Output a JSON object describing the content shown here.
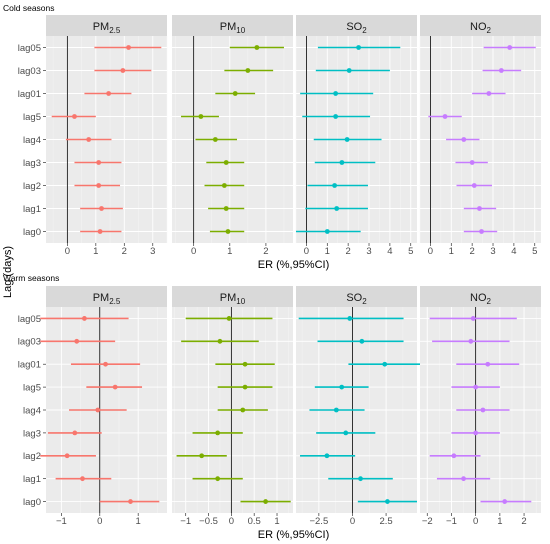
{
  "axis_labels": {
    "x": "ER (%,95%CI)",
    "y": "Lag (days)"
  },
  "sections": [
    {
      "title": "Cold seasons"
    },
    {
      "title": "Warm seasons"
    }
  ],
  "panel_labels": [
    {
      "base": "PM",
      "sub": "2.5"
    },
    {
      "base": "PM",
      "sub": "10"
    },
    {
      "base": "SO",
      "sub": "2"
    },
    {
      "base": "NO",
      "sub": "2"
    }
  ],
  "colors": {
    "PM2.5": "#f8766d",
    "PM10": "#7cae00",
    "SO2": "#00bfc4",
    "NO2": "#c77cff"
  },
  "chart_data": [
    {
      "type": "scatter",
      "subtype": "forest-plot",
      "title": "Cold seasons",
      "xlabel": "ER (%,95%CI)",
      "ylabel": "Lag (days)",
      "categories": [
        "lag05",
        "lag03",
        "lag01",
        "lag5",
        "lag4",
        "lag3",
        "lag2",
        "lag1",
        "lag0"
      ],
      "grid": true,
      "panels": [
        {
          "pollutant": "PM2.5",
          "xlim": [
            -0.75,
            3.5
          ],
          "xticks": [
            0,
            1,
            2,
            3
          ],
          "estimate": [
            2.15,
            1.95,
            1.45,
            0.25,
            0.75,
            1.1,
            1.1,
            1.2,
            1.15
          ],
          "lower": [
            0.95,
            0.95,
            0.6,
            -0.55,
            -0.05,
            0.25,
            0.25,
            0.45,
            0.45
          ],
          "upper": [
            3.3,
            2.95,
            2.25,
            1.0,
            1.55,
            1.9,
            1.85,
            1.95,
            1.9
          ]
        },
        {
          "pollutant": "PM10",
          "xlim": [
            -0.6,
            2.75
          ],
          "xticks": [
            0,
            1,
            2
          ],
          "estimate": [
            1.75,
            1.5,
            1.15,
            0.2,
            0.6,
            0.9,
            0.85,
            0.9,
            0.95
          ],
          "lower": [
            1.0,
            0.85,
            0.6,
            -0.35,
            0.05,
            0.35,
            0.3,
            0.4,
            0.45
          ],
          "upper": [
            2.5,
            2.2,
            1.7,
            0.7,
            1.2,
            1.4,
            1.4,
            1.4,
            1.4
          ]
        },
        {
          "pollutant": "SO2",
          "xlim": [
            -0.5,
            5.3
          ],
          "xticks": [
            0,
            1,
            2,
            3,
            4,
            5
          ],
          "estimate": [
            2.5,
            2.05,
            1.4,
            1.4,
            1.95,
            1.7,
            1.35,
            1.45,
            1.0
          ],
          "lower": [
            0.55,
            0.45,
            -0.3,
            -0.2,
            0.35,
            0.4,
            0.05,
            -0.05,
            -0.5
          ],
          "upper": [
            4.5,
            4.0,
            3.2,
            3.05,
            3.6,
            3.3,
            2.95,
            2.95,
            2.6
          ]
        },
        {
          "pollutant": "NO2",
          "xlim": [
            -0.5,
            5.3
          ],
          "xticks": [
            0,
            1,
            2,
            3,
            4,
            5
          ],
          "estimate": [
            3.8,
            3.4,
            2.8,
            0.7,
            1.6,
            2.0,
            2.1,
            2.35,
            2.45
          ],
          "lower": [
            2.55,
            2.5,
            2.0,
            -0.1,
            0.75,
            1.2,
            1.25,
            1.6,
            1.6
          ],
          "upper": [
            5.05,
            4.35,
            3.6,
            1.5,
            2.35,
            2.75,
            2.95,
            3.15,
            3.2
          ]
        }
      ]
    },
    {
      "type": "scatter",
      "subtype": "forest-plot",
      "title": "Warm seasons",
      "xlabel": "ER (%,95%CI)",
      "ylabel": "Lag (days)",
      "categories": [
        "lag05",
        "lag03",
        "lag01",
        "lag5",
        "lag4",
        "lag3",
        "lag2",
        "lag1",
        "lag0"
      ],
      "grid": true,
      "panels": [
        {
          "pollutant": "PM2.5",
          "xlim": [
            -1.4,
            1.75
          ],
          "xticks": [
            -1,
            0,
            1
          ],
          "estimate": [
            -0.4,
            -0.6,
            0.15,
            0.4,
            -0.05,
            -0.65,
            -0.85,
            -0.45,
            0.8
          ],
          "lower": [
            -1.55,
            -1.55,
            -0.75,
            -0.35,
            -0.8,
            -1.35,
            -1.55,
            -1.15,
            0.0
          ],
          "upper": [
            0.75,
            0.4,
            1.05,
            1.1,
            0.7,
            0.05,
            -0.1,
            0.3,
            1.55
          ]
        },
        {
          "pollutant": "PM10",
          "xlim": [
            -1.3,
            1.35
          ],
          "xticks": [
            -1,
            -0.5,
            0,
            0.5,
            1
          ],
          "estimate": [
            -0.05,
            -0.25,
            0.3,
            0.3,
            0.25,
            -0.3,
            -0.65,
            -0.3,
            0.75
          ],
          "lower": [
            -1.0,
            -1.1,
            -0.35,
            -0.3,
            -0.3,
            -0.85,
            -1.2,
            -0.85,
            0.2
          ],
          "upper": [
            0.9,
            0.6,
            0.95,
            0.9,
            0.8,
            0.25,
            -0.1,
            0.25,
            1.3
          ]
        },
        {
          "pollutant": "SO2",
          "xlim": [
            -4.2,
            4.8
          ],
          "xticks": [
            -2.5,
            0,
            2.5
          ],
          "estimate": [
            -0.2,
            0.7,
            2.4,
            -0.8,
            -1.2,
            -0.5,
            -1.9,
            0.6,
            2.6
          ],
          "lower": [
            -4.0,
            -2.6,
            -0.3,
            -2.8,
            -3.2,
            -2.7,
            -3.9,
            -1.8,
            0.4
          ],
          "upper": [
            3.8,
            3.8,
            5.1,
            1.2,
            0.9,
            1.7,
            0.2,
            3.0,
            4.8
          ]
        },
        {
          "pollutant": "NO2",
          "xlim": [
            -2.3,
            2.7
          ],
          "xticks": [
            -2,
            -1,
            0,
            1,
            2
          ],
          "estimate": [
            -0.1,
            -0.2,
            0.5,
            0.0,
            0.3,
            0.0,
            -0.9,
            -0.5,
            1.2
          ],
          "lower": [
            -1.9,
            -1.8,
            -0.8,
            -1.0,
            -0.8,
            -1.0,
            -1.9,
            -1.6,
            0.2
          ],
          "upper": [
            1.7,
            1.4,
            1.8,
            1.0,
            1.4,
            1.0,
            0.2,
            0.6,
            2.3
          ]
        }
      ]
    }
  ]
}
